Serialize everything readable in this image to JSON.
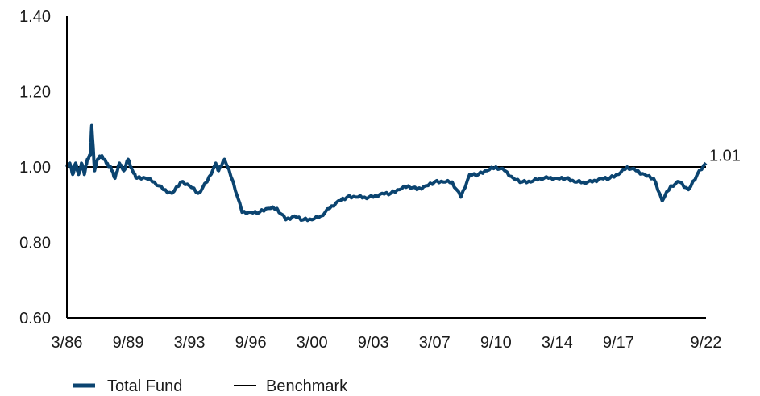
{
  "chart_data": {
    "type": "line",
    "title": "",
    "xlabel": "",
    "ylabel": "",
    "x_range": [
      "3/86",
      "9/22"
    ],
    "ylim": [
      0.6,
      1.4
    ],
    "y_ticks": [
      "0.60",
      "0.80",
      "1.00",
      "1.20",
      "1.40"
    ],
    "x_ticks": [
      "3/86",
      "9/89",
      "3/93",
      "9/96",
      "3/00",
      "9/03",
      "3/07",
      "9/10",
      "3/14",
      "9/17",
      "9/22"
    ],
    "end_label": "1.01",
    "grid": false,
    "legend_position": "bottom-left",
    "colors": {
      "total_fund": "#0b4470",
      "benchmark": "#000000",
      "axis": "#000000"
    },
    "benchmark": {
      "name": "Benchmark",
      "value": 1.0
    },
    "series": [
      {
        "name": "Total Fund",
        "points": [
          [
            "3/86",
            1.0
          ],
          [
            "5/86",
            1.01
          ],
          [
            "7/86",
            0.98
          ],
          [
            "9/86",
            1.01
          ],
          [
            "11/86",
            0.98
          ],
          [
            "1/87",
            1.01
          ],
          [
            "3/87",
            0.98
          ],
          [
            "5/87",
            1.02
          ],
          [
            "7/87",
            1.03
          ],
          [
            "8/87",
            1.11
          ],
          [
            "10/87",
            0.99
          ],
          [
            "12/87",
            1.02
          ],
          [
            "3/88",
            1.03
          ],
          [
            "6/88",
            1.01
          ],
          [
            "9/88",
            1.0
          ],
          [
            "12/88",
            0.97
          ],
          [
            "3/89",
            1.01
          ],
          [
            "6/89",
            0.99
          ],
          [
            "9/89",
            1.02
          ],
          [
            "12/89",
            0.99
          ],
          [
            "3/90",
            0.97
          ],
          [
            "9/90",
            0.97
          ],
          [
            "3/91",
            0.96
          ],
          [
            "9/91",
            0.94
          ],
          [
            "3/92",
            0.93
          ],
          [
            "9/92",
            0.96
          ],
          [
            "3/93",
            0.95
          ],
          [
            "9/93",
            0.93
          ],
          [
            "3/94",
            0.96
          ],
          [
            "9/94",
            1.01
          ],
          [
            "11/94",
            0.99
          ],
          [
            "3/95",
            1.02
          ],
          [
            "9/95",
            0.96
          ],
          [
            "3/96",
            0.88
          ],
          [
            "9/96",
            0.88
          ],
          [
            "3/97",
            0.88
          ],
          [
            "9/97",
            0.89
          ],
          [
            "3/98",
            0.89
          ],
          [
            "9/98",
            0.86
          ],
          [
            "3/99",
            0.87
          ],
          [
            "9/99",
            0.86
          ],
          [
            "3/00",
            0.86
          ],
          [
            "9/00",
            0.87
          ],
          [
            "3/01",
            0.89
          ],
          [
            "9/01",
            0.91
          ],
          [
            "3/02",
            0.92
          ],
          [
            "9/02",
            0.92
          ],
          [
            "3/03",
            0.92
          ],
          [
            "9/03",
            0.92
          ],
          [
            "3/04",
            0.93
          ],
          [
            "9/04",
            0.93
          ],
          [
            "3/05",
            0.94
          ],
          [
            "9/05",
            0.95
          ],
          [
            "3/06",
            0.94
          ],
          [
            "9/06",
            0.95
          ],
          [
            "3/07",
            0.96
          ],
          [
            "9/07",
            0.96
          ],
          [
            "3/08",
            0.96
          ],
          [
            "9/08",
            0.92
          ],
          [
            "3/09",
            0.98
          ],
          [
            "9/09",
            0.98
          ],
          [
            "3/10",
            0.99
          ],
          [
            "9/10",
            1.0
          ],
          [
            "3/11",
            0.99
          ],
          [
            "9/11",
            0.97
          ],
          [
            "3/12",
            0.96
          ],
          [
            "9/12",
            0.96
          ],
          [
            "3/13",
            0.97
          ],
          [
            "9/13",
            0.97
          ],
          [
            "3/14",
            0.97
          ],
          [
            "9/14",
            0.97
          ],
          [
            "3/15",
            0.96
          ],
          [
            "9/15",
            0.96
          ],
          [
            "3/16",
            0.96
          ],
          [
            "9/16",
            0.97
          ],
          [
            "3/17",
            0.97
          ],
          [
            "9/17",
            0.98
          ],
          [
            "3/18",
            1.0
          ],
          [
            "9/18",
            0.99
          ],
          [
            "3/19",
            0.98
          ],
          [
            "9/19",
            0.97
          ],
          [
            "3/20",
            0.91
          ],
          [
            "9/20",
            0.95
          ],
          [
            "3/21",
            0.96
          ],
          [
            "9/21",
            0.94
          ],
          [
            "3/22",
            0.98
          ],
          [
            "9/22",
            1.01
          ]
        ]
      }
    ]
  },
  "legend": {
    "items": [
      {
        "label": "Total Fund"
      },
      {
        "label": "Benchmark"
      }
    ]
  }
}
